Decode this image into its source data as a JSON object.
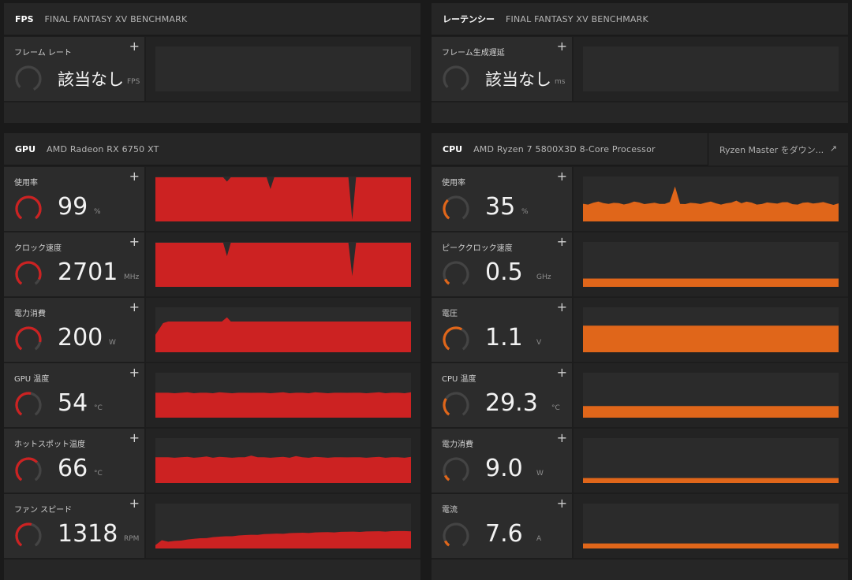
{
  "fps_panel": {
    "title": "FPS",
    "subtitle": "FINAL FANTASY XV BENCHMARK",
    "metric": {
      "label": "フレーム レート",
      "value": "該当なし",
      "unit": "FPS"
    }
  },
  "latency_panel": {
    "title": "レーテンシー",
    "subtitle": "FINAL FANTASY XV BENCHMARK",
    "metric": {
      "label": "フレーム生成遅延",
      "value": "該当なし",
      "unit": "ms"
    }
  },
  "gpu_panel": {
    "title": "GPU",
    "subtitle": "AMD Radeon RX 6750 XT",
    "color": "#cc2222",
    "metrics": [
      {
        "label": "使用率",
        "value": "99",
        "unit": "%",
        "level": 0.99
      },
      {
        "label": "クロック速度",
        "value": "2701",
        "unit": "MHz",
        "level": 0.9
      },
      {
        "label": "電力消費",
        "value": "200",
        "unit": "W",
        "level": 0.85
      },
      {
        "label": "GPU 温度",
        "value": "54",
        "unit": "°C",
        "level": 0.54
      },
      {
        "label": "ホットスポット温度",
        "value": "66",
        "unit": "°C",
        "level": 0.66
      },
      {
        "label": "ファン スピード",
        "value": "1318",
        "unit": "RPM",
        "level": 0.55
      }
    ]
  },
  "cpu_panel": {
    "title": "CPU",
    "subtitle": "AMD Ryzen 7 5800X3D 8-Core Processor",
    "ryzen_master_label": "Ryzen Master をダウン...",
    "color": "#e0661a",
    "metrics": [
      {
        "label": "使用率",
        "value": "35",
        "unit": "%",
        "level": 0.35
      },
      {
        "label": "ピーククロック速度",
        "value": "0.5",
        "unit": "GHz",
        "level": 0.1
      },
      {
        "label": "電圧",
        "value": "1.1",
        "unit": "V",
        "level": 0.6
      },
      {
        "label": "CPU 温度",
        "value": "29.3",
        "unit": "°C",
        "level": 0.3
      },
      {
        "label": "電力消費",
        "value": "9.0",
        "unit": "W",
        "level": 0.1
      },
      {
        "label": "電流",
        "value": "7.6",
        "unit": "A",
        "level": 0.1
      }
    ]
  },
  "ui": {
    "add_label": "+",
    "external_icon": "↗"
  }
}
